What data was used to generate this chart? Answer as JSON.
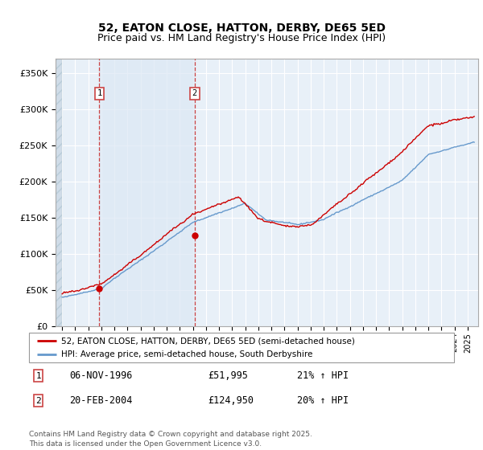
{
  "title": "52, EATON CLOSE, HATTON, DERBY, DE65 5ED",
  "subtitle": "Price paid vs. HM Land Registry's House Price Index (HPI)",
  "legend_line1": "52, EATON CLOSE, HATTON, DERBY, DE65 5ED (semi-detached house)",
  "legend_line2": "HPI: Average price, semi-detached house, South Derbyshire",
  "sale1_date": "06-NOV-1996",
  "sale1_price": "£51,995",
  "sale1_hpi": "21% ↑ HPI",
  "sale1_x": 1996.85,
  "sale1_y": 51995,
  "sale2_date": "20-FEB-2004",
  "sale2_price": "£124,950",
  "sale2_hpi": "20% ↑ HPI",
  "sale2_x": 2004.13,
  "sale2_y": 124950,
  "footer": "Contains HM Land Registry data © Crown copyright and database right 2025.\nThis data is licensed under the Open Government Licence v3.0.",
  "ylim": [
    0,
    370000
  ],
  "xlim_start": 1993.5,
  "xlim_end": 2025.8,
  "background_color": "#ffffff",
  "plot_bg_color": "#e8f0f8",
  "shade_between_color": "#dce8f4",
  "hatch_bg_color": "#d0dce8",
  "grid_color": "#ffffff",
  "red_line_color": "#cc0000",
  "blue_line_color": "#6699cc",
  "dashed_line_color": "#cc4444",
  "title_fontsize": 10,
  "subtitle_fontsize": 9
}
